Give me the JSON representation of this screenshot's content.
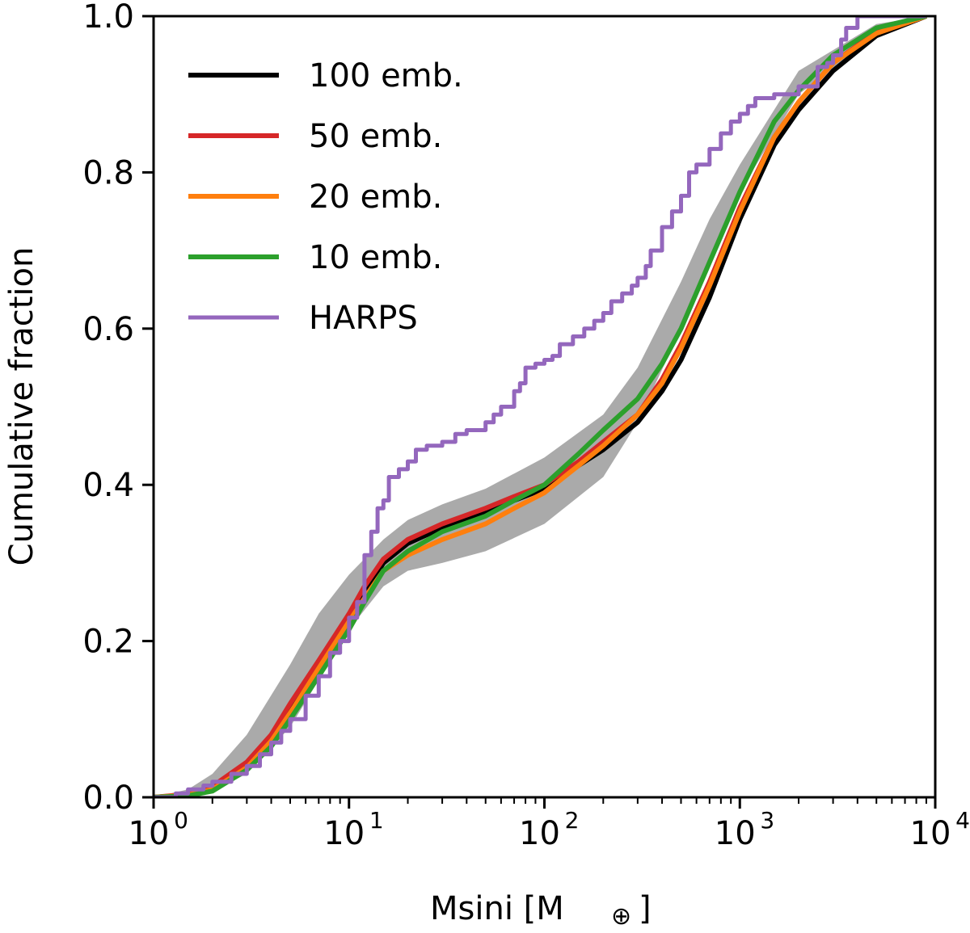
{
  "chart_data": {
    "type": "line",
    "title": "",
    "xlabel": "Msini [M",
    "xlabel_symbol": "⊕",
    "xlabel_close": "]",
    "ylabel": "Cumulative fraction",
    "xscale": "log",
    "xlim": [
      1,
      10000
    ],
    "ylim": [
      0.0,
      1.0
    ],
    "grid": false,
    "legend_position": "top-left",
    "x_ticks": [
      {
        "base": "10",
        "exp": "0"
      },
      {
        "base": "10",
        "exp": "1"
      },
      {
        "base": "10",
        "exp": "2"
      },
      {
        "base": "10",
        "exp": "3"
      },
      {
        "base": "10",
        "exp": "4"
      }
    ],
    "y_ticks": [
      "0.0",
      "0.2",
      "0.4",
      "0.6",
      "0.8",
      "1.0"
    ],
    "band": {
      "color": "#aaaaaa",
      "x": [
        1,
        1.5,
        2,
        3,
        5,
        7,
        10,
        15,
        20,
        30,
        50,
        100,
        200,
        300,
        500,
        700,
        1000,
        2000,
        5000,
        9000
      ],
      "lower": [
        0.0,
        0.002,
        0.008,
        0.03,
        0.09,
        0.15,
        0.215,
        0.27,
        0.29,
        0.3,
        0.315,
        0.35,
        0.41,
        0.48,
        0.6,
        0.68,
        0.775,
        0.9,
        0.975,
        1.0
      ],
      "upper": [
        0.0,
        0.01,
        0.03,
        0.08,
        0.17,
        0.235,
        0.285,
        0.33,
        0.355,
        0.375,
        0.395,
        0.435,
        0.49,
        0.55,
        0.66,
        0.74,
        0.81,
        0.93,
        0.99,
        1.0
      ]
    },
    "series": [
      {
        "name": "100 emb.",
        "color": "#000000",
        "x": [
          1,
          1.5,
          2,
          3,
          4,
          5,
          7,
          10,
          12,
          15,
          20,
          30,
          50,
          70,
          100,
          150,
          200,
          300,
          400,
          500,
          700,
          1000,
          1500,
          2000,
          3000,
          5000,
          9000
        ],
        "y": [
          0.0,
          0.003,
          0.012,
          0.04,
          0.075,
          0.11,
          0.165,
          0.225,
          0.26,
          0.3,
          0.325,
          0.345,
          0.365,
          0.38,
          0.395,
          0.425,
          0.445,
          0.48,
          0.52,
          0.56,
          0.64,
          0.74,
          0.835,
          0.88,
          0.93,
          0.975,
          1.0
        ]
      },
      {
        "name": "50 emb.",
        "color": "#d62728",
        "x": [
          1,
          1.5,
          2,
          3,
          4,
          5,
          7,
          10,
          12,
          15,
          20,
          30,
          50,
          70,
          100,
          150,
          200,
          300,
          400,
          500,
          700,
          1000,
          1500,
          2000,
          3000,
          5000,
          9000
        ],
        "y": [
          0.0,
          0.004,
          0.014,
          0.045,
          0.08,
          0.12,
          0.175,
          0.235,
          0.27,
          0.305,
          0.33,
          0.35,
          0.37,
          0.385,
          0.4,
          0.43,
          0.455,
          0.49,
          0.535,
          0.58,
          0.66,
          0.755,
          0.845,
          0.89,
          0.94,
          0.98,
          1.0
        ]
      },
      {
        "name": "20 emb.",
        "color": "#ff7f0e",
        "x": [
          1,
          1.5,
          2,
          3,
          4,
          5,
          7,
          10,
          12,
          15,
          20,
          30,
          50,
          70,
          100,
          150,
          200,
          300,
          400,
          500,
          700,
          1000,
          1500,
          2000,
          3000,
          5000,
          9000
        ],
        "y": [
          0.0,
          0.003,
          0.01,
          0.038,
          0.072,
          0.108,
          0.165,
          0.225,
          0.255,
          0.29,
          0.31,
          0.33,
          0.35,
          0.37,
          0.39,
          0.425,
          0.45,
          0.49,
          0.53,
          0.575,
          0.655,
          0.75,
          0.845,
          0.89,
          0.94,
          0.978,
          1.0
        ]
      },
      {
        "name": "10 emb.",
        "color": "#2ca02c",
        "x": [
          1,
          1.5,
          2,
          3,
          4,
          5,
          7,
          10,
          12,
          15,
          20,
          30,
          50,
          70,
          100,
          150,
          200,
          300,
          400,
          500,
          700,
          1000,
          1500,
          2000,
          3000,
          5000,
          9000
        ],
        "y": [
          0.0,
          0.002,
          0.008,
          0.035,
          0.065,
          0.1,
          0.155,
          0.215,
          0.25,
          0.29,
          0.315,
          0.34,
          0.36,
          0.38,
          0.4,
          0.44,
          0.47,
          0.51,
          0.555,
          0.6,
          0.685,
          0.775,
          0.865,
          0.905,
          0.95,
          0.985,
          1.0
        ]
      },
      {
        "name": "HARPS",
        "color": "#9467bd",
        "step": true,
        "x": [
          1,
          1.3,
          1.5,
          1.8,
          2.0,
          2.5,
          3,
          3.5,
          4,
          4.5,
          5,
          6,
          7,
          8,
          9,
          10,
          11,
          12,
          13,
          14,
          15,
          16,
          18,
          20,
          22,
          25,
          30,
          35,
          40,
          50,
          55,
          60,
          70,
          75,
          80,
          90,
          100,
          110,
          120,
          140,
          160,
          180,
          200,
          220,
          250,
          280,
          300,
          330,
          350,
          400,
          450,
          500,
          550,
          600,
          700,
          800,
          900,
          1000,
          1100,
          1200,
          1500,
          2000,
          2500,
          2800,
          3000,
          3300,
          3500,
          4000,
          5000,
          8000,
          9000
        ],
        "y": [
          0.0,
          0.005,
          0.01,
          0.015,
          0.02,
          0.03,
          0.04,
          0.055,
          0.07,
          0.085,
          0.1,
          0.13,
          0.155,
          0.185,
          0.2,
          0.23,
          0.25,
          0.31,
          0.34,
          0.37,
          0.38,
          0.41,
          0.42,
          0.43,
          0.445,
          0.45,
          0.455,
          0.465,
          0.47,
          0.48,
          0.49,
          0.5,
          0.52,
          0.53,
          0.55,
          0.555,
          0.56,
          0.565,
          0.58,
          0.59,
          0.6,
          0.61,
          0.62,
          0.635,
          0.645,
          0.655,
          0.665,
          0.68,
          0.7,
          0.73,
          0.75,
          0.77,
          0.8,
          0.81,
          0.83,
          0.85,
          0.865,
          0.875,
          0.885,
          0.895,
          0.9,
          0.91,
          0.935,
          0.94,
          0.95,
          0.97,
          0.985,
          1.0,
          1.0,
          1.0,
          1.0
        ]
      }
    ]
  }
}
